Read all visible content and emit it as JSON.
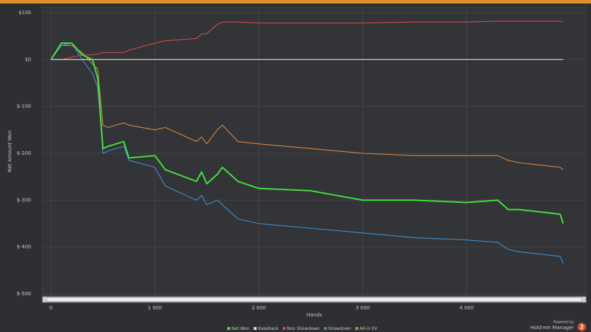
{
  "chart_data": {
    "type": "line",
    "x_label": "Hands",
    "y_label": "Net Amount Won",
    "x": [
      0,
      100,
      200,
      300,
      400,
      450,
      500,
      550,
      700,
      750,
      1000,
      1100,
      1400,
      1450,
      1500,
      1600,
      1650,
      1800,
      2000,
      2500,
      3000,
      3500,
      4000,
      4300,
      4400,
      4500,
      4900,
      4930
    ],
    "series": [
      {
        "name": "Net Won",
        "color": "#44e03a",
        "values": [
          0,
          35,
          35,
          10,
          0,
          -40,
          -190,
          -185,
          -175,
          -210,
          -205,
          -235,
          -260,
          -240,
          -265,
          -245,
          -230,
          -260,
          -275,
          -280,
          -300,
          -300,
          -305,
          -300,
          -320,
          -320,
          -330,
          -350
        ]
      },
      {
        "name": "Rakeback",
        "color": "#e8e8c8",
        "values": [
          0,
          0,
          0,
          0,
          0,
          0,
          0,
          0,
          0,
          0,
          0,
          0,
          0,
          0,
          0,
          0,
          0,
          0,
          0,
          0,
          0,
          0,
          0,
          0,
          0,
          0,
          0,
          0
        ]
      },
      {
        "name": "Non Showdown",
        "color": "#d2494f",
        "values": [
          0,
          0,
          5,
          10,
          10,
          12,
          15,
          15,
          15,
          20,
          35,
          40,
          45,
          55,
          55,
          75,
          80,
          80,
          78,
          78,
          78,
          80,
          80,
          82,
          82,
          82,
          82,
          80
        ]
      },
      {
        "name": "Showdown",
        "color": "#3f8fd0",
        "values": [
          0,
          30,
          35,
          0,
          -30,
          -60,
          -200,
          -195,
          -185,
          -215,
          -230,
          -270,
          -300,
          -290,
          -310,
          -300,
          -310,
          -340,
          -350,
          -360,
          -370,
          -380,
          -385,
          -390,
          -405,
          -410,
          -420,
          -435
        ]
      },
      {
        "name": "All-in EV",
        "color": "#d9893a",
        "values": [
          0,
          30,
          30,
          15,
          -10,
          -20,
          -140,
          -145,
          -135,
          -140,
          -150,
          -145,
          -175,
          -165,
          -180,
          -150,
          -140,
          -175,
          -180,
          -190,
          -200,
          -205,
          -205,
          -205,
          -215,
          -220,
          -230,
          -235
        ]
      }
    ],
    "xlim": [
      -82,
      5150
    ],
    "ylim": [
      -503,
      112
    ],
    "xticks": [
      0,
      {
        "value": 1000,
        "label": "1 000"
      },
      {
        "value": 2000,
        "label": "2 000"
      },
      {
        "value": 3000,
        "label": "3 000"
      },
      {
        "value": 4000,
        "label": "4 000"
      }
    ],
    "yticks": [
      {
        "value": 100,
        "label": "$100"
      },
      {
        "value": 0,
        "label": "$0"
      },
      {
        "value": -100,
        "label": "$-100"
      },
      {
        "value": -200,
        "label": "$-200"
      },
      {
        "value": -300,
        "label": "$-300"
      },
      {
        "value": -400,
        "label": "$-400"
      },
      {
        "value": -500,
        "label": "$-500"
      }
    ],
    "grid": true,
    "legend": "bottom"
  },
  "branding": {
    "line1": "Powered by",
    "line2": "Hold'em Manager",
    "badge": "2"
  }
}
